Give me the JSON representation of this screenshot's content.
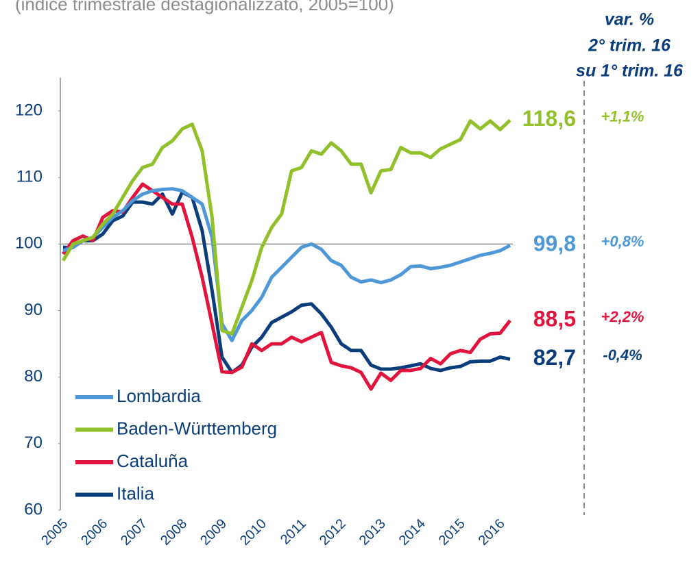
{
  "chart_data": {
    "type": "line",
    "subtitle": "(indice trimestrale destagionalizzato, 2005=100)",
    "annotation": [
      "var. %",
      "2° trim. 16",
      "su 1° trim. 16"
    ],
    "categories": [
      "2005",
      null,
      null,
      null,
      "2006",
      null,
      null,
      null,
      "2007",
      null,
      null,
      null,
      "2008",
      null,
      null,
      null,
      "2009",
      null,
      null,
      null,
      "2010",
      null,
      null,
      null,
      "2011",
      null,
      null,
      null,
      "2012",
      null,
      null,
      null,
      "2013",
      null,
      null,
      null,
      "2014",
      null,
      null,
      null,
      "2015",
      null,
      null,
      null,
      "2016",
      null
    ],
    "ylim": [
      60,
      125
    ],
    "yticks": [
      60,
      70,
      80,
      90,
      100,
      110,
      120
    ],
    "reference_line": 100,
    "series": [
      {
        "name": "Lombardia",
        "color": "#4f98d8",
        "end_label": "99,8",
        "change": "+0,8%",
        "values": [
          99,
          99.5,
          100.5,
          101,
          102.5,
          104,
          105,
          106.5,
          107.5,
          108,
          108.2,
          108.3,
          108,
          107,
          106,
          101,
          88,
          85.5,
          88.5,
          90,
          92,
          95,
          96.5,
          98,
          99.5,
          100,
          99.2,
          97.5,
          96.8,
          95,
          94.3,
          94.6,
          94.2,
          94.6,
          95.4,
          96.6,
          96.7,
          96.3,
          96.5,
          96.8,
          97.3,
          97.8,
          98.3,
          98.6,
          99,
          99.8
        ]
      },
      {
        "name": "Baden-Württemberg",
        "color": "#92c02a",
        "end_label": "118,6",
        "change": "+1,1%",
        "values": [
          97.5,
          100,
          100.5,
          101,
          103,
          104.5,
          107,
          109.5,
          111.5,
          112,
          114.5,
          115.5,
          117.3,
          118,
          114,
          104,
          87,
          86.5,
          90.5,
          94.5,
          99.5,
          102.5,
          104.5,
          111,
          111.5,
          114,
          113.5,
          115.2,
          114,
          112,
          112,
          107.7,
          111,
          111.2,
          114.5,
          113.7,
          113.7,
          113,
          114.3,
          115,
          115.7,
          118.5,
          117.3,
          118.5,
          117.2,
          118.6
        ]
      },
      {
        "name": "Cataluña",
        "color": "#e0143c",
        "end_label": "88,5",
        "change": "+2,2%",
        "values": [
          98.5,
          100.5,
          101.2,
          100.5,
          104,
          105,
          104.8,
          107,
          109,
          108,
          107,
          106,
          106,
          101,
          95,
          88,
          80.8,
          80.7,
          81.5,
          85,
          84,
          85,
          85,
          86,
          85.3,
          86,
          86.7,
          82.2,
          81.7,
          81.4,
          80.7,
          78.2,
          80.6,
          79.5,
          81,
          81,
          81.3,
          82.8,
          82,
          83.5,
          84,
          83.7,
          85.7,
          86.5,
          86.6,
          88.5
        ]
      },
      {
        "name": "Italia",
        "color": "#0b3d7a",
        "end_label": "82,7",
        "change": "-0,4%",
        "values": [
          99.5,
          99.5,
          100.5,
          100.5,
          101.5,
          103.5,
          104.2,
          106.3,
          106.3,
          106,
          107.5,
          104.5,
          107.8,
          107,
          102,
          93,
          83,
          80.7,
          81.8,
          84.5,
          86,
          88.2,
          89,
          89.8,
          90.8,
          91,
          89.5,
          87.5,
          85,
          84,
          84,
          81.8,
          81.2,
          81.2,
          81.4,
          81.7,
          82,
          81.3,
          81,
          81.4,
          81.6,
          82.3,
          82.4,
          82.4,
          83,
          82.7
        ]
      }
    ]
  }
}
